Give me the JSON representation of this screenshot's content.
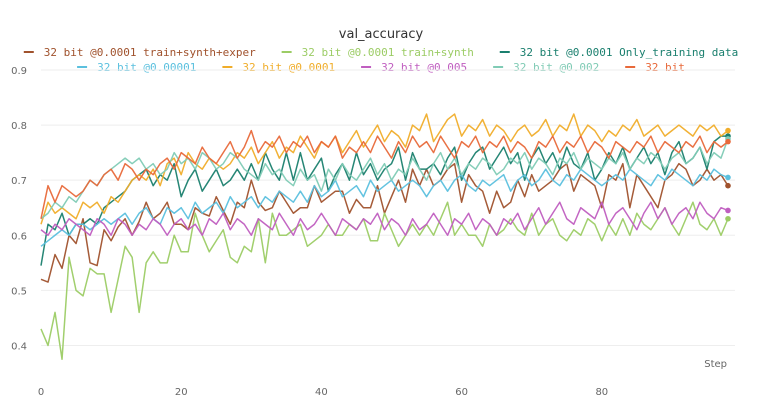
{
  "chart_data": {
    "type": "line",
    "title": "val_accuracy",
    "xlabel": "Step",
    "ylabel": "",
    "xlim": [
      0,
      99
    ],
    "ylim": [
      0.35,
      0.9
    ],
    "x_ticks": [
      0,
      20,
      40,
      60,
      80
    ],
    "y_ticks": [
      0.4,
      0.5,
      0.6,
      0.7,
      0.8,
      0.9
    ],
    "grid": "horizontal",
    "legend_position": "top",
    "series": [
      {
        "name": "32 bit @0.0001 train+synth+exper",
        "color": "#a0522d",
        "values": [
          0.52,
          0.515,
          0.565,
          0.54,
          0.6,
          0.585,
          0.63,
          0.55,
          0.545,
          0.61,
          0.59,
          0.615,
          0.63,
          0.6,
          0.625,
          0.66,
          0.63,
          0.64,
          0.66,
          0.62,
          0.62,
          0.61,
          0.65,
          0.64,
          0.635,
          0.67,
          0.645,
          0.62,
          0.66,
          0.65,
          0.7,
          0.66,
          0.645,
          0.65,
          0.68,
          0.66,
          0.64,
          0.65,
          0.65,
          0.69,
          0.66,
          0.67,
          0.68,
          0.68,
          0.64,
          0.665,
          0.65,
          0.65,
          0.69,
          0.64,
          0.67,
          0.7,
          0.66,
          0.72,
          0.69,
          0.72,
          0.69,
          0.7,
          0.72,
          0.73,
          0.66,
          0.71,
          0.69,
          0.68,
          0.64,
          0.68,
          0.65,
          0.66,
          0.7,
          0.67,
          0.71,
          0.68,
          0.69,
          0.7,
          0.72,
          0.73,
          0.68,
          0.71,
          0.7,
          0.69,
          0.65,
          0.71,
          0.7,
          0.73,
          0.65,
          0.71,
          0.69,
          0.67,
          0.65,
          0.7,
          0.71,
          0.73,
          0.72,
          0.69,
          0.7,
          0.72,
          0.7,
          0.71,
          0.69
        ]
      },
      {
        "name": "32 bit @0.0001 train+synth",
        "color": "#9ccc65",
        "values": [
          0.43,
          0.4,
          0.46,
          0.375,
          0.56,
          0.5,
          0.49,
          0.54,
          0.53,
          0.53,
          0.46,
          0.52,
          0.58,
          0.56,
          0.46,
          0.55,
          0.57,
          0.55,
          0.55,
          0.6,
          0.57,
          0.57,
          0.64,
          0.6,
          0.57,
          0.59,
          0.61,
          0.56,
          0.55,
          0.58,
          0.57,
          0.63,
          0.55,
          0.64,
          0.6,
          0.6,
          0.61,
          0.62,
          0.58,
          0.59,
          0.6,
          0.62,
          0.6,
          0.6,
          0.62,
          0.61,
          0.63,
          0.59,
          0.59,
          0.64,
          0.61,
          0.58,
          0.6,
          0.62,
          0.6,
          0.62,
          0.6,
          0.63,
          0.66,
          0.6,
          0.62,
          0.6,
          0.6,
          0.58,
          0.62,
          0.6,
          0.61,
          0.63,
          0.61,
          0.6,
          0.64,
          0.6,
          0.62,
          0.63,
          0.6,
          0.59,
          0.61,
          0.6,
          0.63,
          0.62,
          0.59,
          0.62,
          0.6,
          0.63,
          0.6,
          0.64,
          0.62,
          0.61,
          0.63,
          0.65,
          0.62,
          0.6,
          0.63,
          0.66,
          0.62,
          0.61,
          0.63,
          0.6,
          0.63
        ]
      },
      {
        "name": "32 bit @0.0001 Only_training data",
        "color": "#1a7f6e",
        "values": [
          0.545,
          0.62,
          0.61,
          0.64,
          0.6,
          0.62,
          0.62,
          0.63,
          0.62,
          0.65,
          0.66,
          0.67,
          0.68,
          0.7,
          0.71,
          0.72,
          0.69,
          0.71,
          0.7,
          0.73,
          0.67,
          0.7,
          0.72,
          0.68,
          0.7,
          0.72,
          0.69,
          0.7,
          0.72,
          0.7,
          0.73,
          0.7,
          0.75,
          0.72,
          0.7,
          0.75,
          0.7,
          0.75,
          0.7,
          0.72,
          0.74,
          0.68,
          0.71,
          0.73,
          0.7,
          0.75,
          0.71,
          0.73,
          0.7,
          0.72,
          0.73,
          0.76,
          0.7,
          0.75,
          0.72,
          0.72,
          0.73,
          0.71,
          0.74,
          0.76,
          0.7,
          0.73,
          0.75,
          0.76,
          0.72,
          0.74,
          0.76,
          0.73,
          0.75,
          0.7,
          0.74,
          0.76,
          0.73,
          0.75,
          0.72,
          0.76,
          0.73,
          0.72,
          0.75,
          0.7,
          0.72,
          0.75,
          0.73,
          0.76,
          0.72,
          0.74,
          0.76,
          0.73,
          0.75,
          0.71,
          0.75,
          0.77,
          0.73,
          0.74,
          0.76,
          0.72,
          0.77,
          0.78,
          0.78
        ]
      },
      {
        "name": "32 bit @0.00001",
        "color": "#5bc0de",
        "values": [
          0.58,
          0.59,
          0.6,
          0.61,
          0.6,
          0.62,
          0.62,
          0.61,
          0.62,
          0.63,
          0.62,
          0.63,
          0.64,
          0.62,
          0.64,
          0.65,
          0.63,
          0.62,
          0.65,
          0.64,
          0.65,
          0.63,
          0.66,
          0.64,
          0.65,
          0.66,
          0.64,
          0.67,
          0.65,
          0.66,
          0.67,
          0.65,
          0.67,
          0.66,
          0.68,
          0.67,
          0.66,
          0.68,
          0.66,
          0.69,
          0.67,
          0.68,
          0.7,
          0.67,
          0.68,
          0.69,
          0.67,
          0.7,
          0.68,
          0.69,
          0.7,
          0.68,
          0.69,
          0.7,
          0.69,
          0.67,
          0.69,
          0.7,
          0.68,
          0.7,
          0.71,
          0.69,
          0.68,
          0.7,
          0.69,
          0.7,
          0.71,
          0.68,
          0.7,
          0.71,
          0.69,
          0.7,
          0.72,
          0.7,
          0.69,
          0.71,
          0.7,
          0.72,
          0.71,
          0.7,
          0.69,
          0.7,
          0.71,
          0.7,
          0.72,
          0.71,
          0.7,
          0.69,
          0.71,
          0.7,
          0.72,
          0.71,
          0.7,
          0.69,
          0.71,
          0.7,
          0.72,
          0.71,
          0.705
        ]
      },
      {
        "name": "32 bit @0.0001",
        "color": "#f0ad2a",
        "values": [
          0.62,
          0.66,
          0.64,
          0.65,
          0.64,
          0.63,
          0.66,
          0.65,
          0.66,
          0.64,
          0.67,
          0.66,
          0.68,
          0.7,
          0.71,
          0.7,
          0.72,
          0.69,
          0.73,
          0.74,
          0.71,
          0.75,
          0.73,
          0.72,
          0.74,
          0.73,
          0.72,
          0.73,
          0.75,
          0.74,
          0.76,
          0.73,
          0.75,
          0.77,
          0.74,
          0.76,
          0.75,
          0.78,
          0.76,
          0.74,
          0.77,
          0.76,
          0.78,
          0.75,
          0.77,
          0.79,
          0.76,
          0.78,
          0.8,
          0.77,
          0.79,
          0.78,
          0.76,
          0.8,
          0.79,
          0.82,
          0.77,
          0.79,
          0.81,
          0.82,
          0.78,
          0.8,
          0.79,
          0.81,
          0.78,
          0.8,
          0.79,
          0.77,
          0.79,
          0.8,
          0.78,
          0.79,
          0.81,
          0.78,
          0.8,
          0.79,
          0.82,
          0.78,
          0.8,
          0.79,
          0.77,
          0.79,
          0.78,
          0.8,
          0.79,
          0.81,
          0.78,
          0.79,
          0.8,
          0.78,
          0.79,
          0.8,
          0.79,
          0.78,
          0.8,
          0.79,
          0.8,
          0.78,
          0.79
        ]
      },
      {
        "name": "32 bit @0.005",
        "color": "#c05ec0",
        "values": [
          0.61,
          0.6,
          0.62,
          0.61,
          0.63,
          0.62,
          0.61,
          0.6,
          0.63,
          0.62,
          0.6,
          0.63,
          0.62,
          0.6,
          0.62,
          0.61,
          0.63,
          0.62,
          0.6,
          0.62,
          0.63,
          0.61,
          0.62,
          0.6,
          0.63,
          0.62,
          0.64,
          0.61,
          0.63,
          0.62,
          0.6,
          0.63,
          0.62,
          0.61,
          0.64,
          0.62,
          0.6,
          0.63,
          0.61,
          0.62,
          0.64,
          0.62,
          0.6,
          0.63,
          0.62,
          0.61,
          0.63,
          0.62,
          0.64,
          0.61,
          0.63,
          0.62,
          0.6,
          0.63,
          0.61,
          0.62,
          0.64,
          0.62,
          0.6,
          0.63,
          0.62,
          0.64,
          0.61,
          0.63,
          0.62,
          0.6,
          0.63,
          0.62,
          0.64,
          0.61,
          0.63,
          0.65,
          0.62,
          0.64,
          0.66,
          0.63,
          0.62,
          0.65,
          0.64,
          0.63,
          0.66,
          0.62,
          0.64,
          0.65,
          0.63,
          0.61,
          0.64,
          0.66,
          0.63,
          0.65,
          0.62,
          0.64,
          0.65,
          0.63,
          0.66,
          0.64,
          0.63,
          0.65,
          0.645
        ]
      },
      {
        "name": "32 bit @0.002",
        "color": "#80cbb5",
        "values": [
          0.63,
          0.64,
          0.66,
          0.65,
          0.67,
          0.66,
          0.68,
          0.7,
          0.69,
          0.71,
          0.72,
          0.73,
          0.74,
          0.73,
          0.74,
          0.72,
          0.73,
          0.71,
          0.72,
          0.75,
          0.73,
          0.74,
          0.72,
          0.75,
          0.74,
          0.72,
          0.73,
          0.75,
          0.74,
          0.72,
          0.71,
          0.7,
          0.73,
          0.71,
          0.72,
          0.7,
          0.69,
          0.72,
          0.7,
          0.71,
          0.68,
          0.72,
          0.7,
          0.73,
          0.71,
          0.7,
          0.72,
          0.74,
          0.71,
          0.73,
          0.7,
          0.72,
          0.71,
          0.74,
          0.72,
          0.7,
          0.73,
          0.75,
          0.72,
          0.74,
          0.71,
          0.73,
          0.72,
          0.74,
          0.73,
          0.71,
          0.72,
          0.74,
          0.73,
          0.75,
          0.72,
          0.74,
          0.73,
          0.71,
          0.74,
          0.73,
          0.75,
          0.72,
          0.74,
          0.73,
          0.72,
          0.74,
          0.73,
          0.75,
          0.72,
          0.74,
          0.73,
          0.75,
          0.74,
          0.72,
          0.74,
          0.75,
          0.73,
          0.74,
          0.76,
          0.73,
          0.75,
          0.74,
          0.775
        ]
      },
      {
        "name": "32 bit",
        "color": "#e8693a",
        "values": [
          0.63,
          0.69,
          0.66,
          0.69,
          0.68,
          0.67,
          0.68,
          0.7,
          0.69,
          0.71,
          0.72,
          0.7,
          0.73,
          0.72,
          0.7,
          0.72,
          0.71,
          0.73,
          0.74,
          0.72,
          0.75,
          0.74,
          0.73,
          0.76,
          0.74,
          0.73,
          0.75,
          0.77,
          0.74,
          0.76,
          0.79,
          0.75,
          0.77,
          0.76,
          0.78,
          0.75,
          0.77,
          0.76,
          0.78,
          0.75,
          0.77,
          0.76,
          0.78,
          0.74,
          0.76,
          0.75,
          0.77,
          0.75,
          0.78,
          0.76,
          0.74,
          0.77,
          0.75,
          0.78,
          0.76,
          0.77,
          0.75,
          0.78,
          0.76,
          0.74,
          0.77,
          0.76,
          0.78,
          0.75,
          0.77,
          0.76,
          0.78,
          0.75,
          0.77,
          0.76,
          0.74,
          0.77,
          0.76,
          0.78,
          0.75,
          0.77,
          0.76,
          0.78,
          0.75,
          0.77,
          0.76,
          0.74,
          0.77,
          0.76,
          0.75,
          0.77,
          0.76,
          0.78,
          0.75,
          0.77,
          0.76,
          0.75,
          0.77,
          0.76,
          0.78,
          0.75,
          0.77,
          0.76,
          0.77
        ]
      }
    ]
  }
}
